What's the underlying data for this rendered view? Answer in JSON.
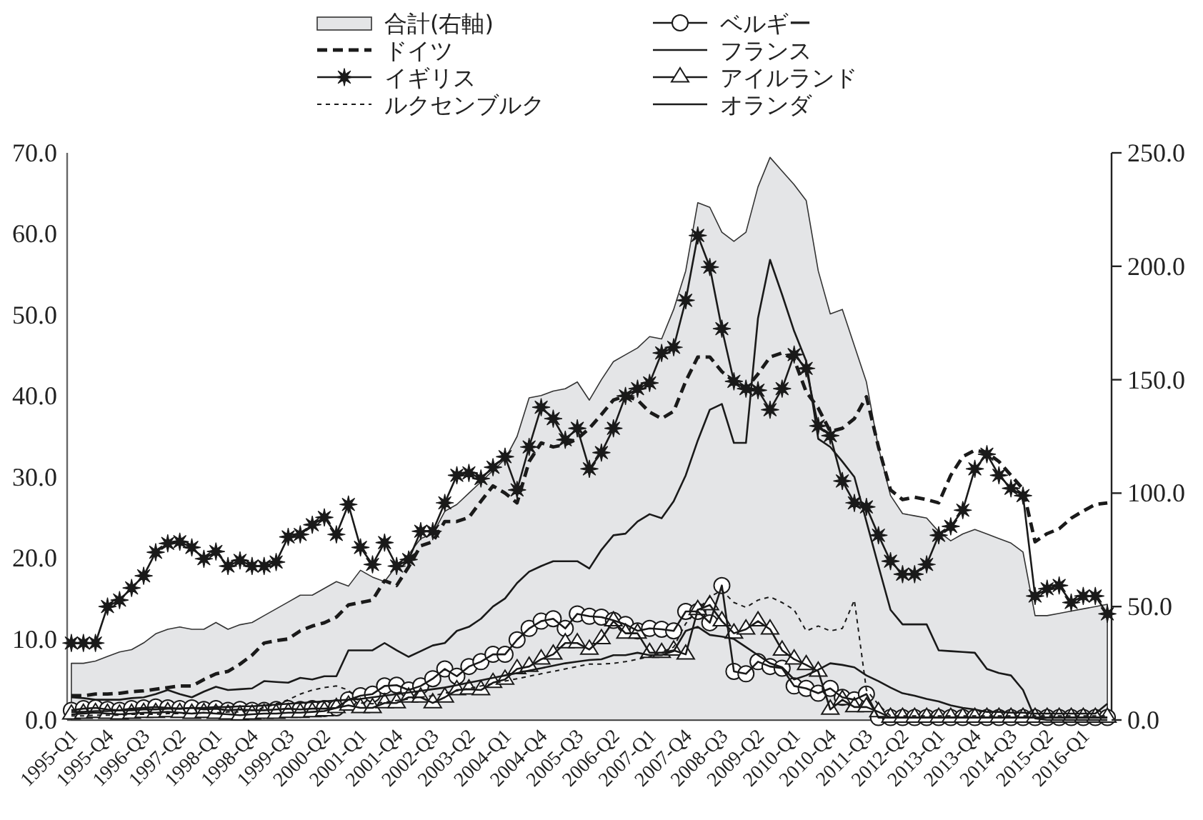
{
  "chart_data": {
    "type": "line",
    "categories": [
      "1995-Q1",
      null,
      null,
      "1995-Q4",
      null,
      null,
      "1996-Q3",
      null,
      null,
      "1997-Q2",
      null,
      null,
      "1998-Q1",
      null,
      null,
      "1998-Q4",
      null,
      null,
      "1999-Q3",
      null,
      null,
      "2000-Q2",
      null,
      null,
      "2001-Q1",
      null,
      null,
      "2001-Q4",
      null,
      null,
      "2002-Q3",
      null,
      null,
      "2003-Q2",
      null,
      null,
      "2004-Q1",
      null,
      null,
      "2004-Q4",
      null,
      null,
      "2005-Q3",
      null,
      null,
      "2006-Q2",
      null,
      null,
      "2007-Q1",
      null,
      null,
      "2007-Q4",
      null,
      null,
      "2008-Q3",
      null,
      null,
      "2009-Q2",
      null,
      null,
      "2010-Q1",
      null,
      null,
      "2010-Q4",
      null,
      null,
      "2011-Q3",
      null,
      null,
      "2012-Q2",
      null,
      null,
      "2013-Q1",
      null,
      null,
      "2013-Q4",
      null,
      null,
      "2014-Q3",
      null,
      null,
      "2015-Q2",
      null,
      null,
      "2016-Q1",
      null,
      null
    ],
    "series": [
      {
        "name": "合計(右軸)",
        "type": "area",
        "axis": "y2",
        "color": "#e4e5e7",
        "values": [
          25,
          25,
          26,
          28,
          30,
          31,
          34,
          38,
          40,
          41,
          40,
          40,
          43,
          40,
          42,
          43,
          46,
          49,
          52,
          55,
          55,
          58,
          61,
          59,
          66,
          63,
          61,
          68,
          73,
          80,
          82,
          92,
          95,
          100,
          105,
          110,
          115,
          125,
          142,
          143,
          145,
          146,
          149,
          141,
          150,
          158,
          161,
          164,
          169,
          168,
          181,
          198,
          228,
          226,
          215,
          211,
          215,
          235,
          248,
          242,
          236,
          229,
          198,
          179,
          181,
          165,
          149,
          120,
          99,
          91,
          90,
          89,
          83,
          79,
          82,
          84,
          82,
          80,
          78,
          74,
          46,
          46,
          47,
          48,
          49,
          50,
          51
        ]
      },
      {
        "name": "ドイツ",
        "color": "#1a1a1a",
        "line_style": "dashed",
        "values": [
          3.0,
          3.0,
          3.2,
          3.2,
          3.3,
          3.5,
          3.6,
          3.8,
          4.0,
          4.2,
          4.2,
          5.0,
          5.7,
          6.0,
          6.9,
          8.0,
          9.5,
          9.8,
          10.0,
          11.0,
          11.6,
          12.0,
          12.7,
          14.2,
          14.5,
          14.8,
          17.2,
          16.6,
          18.9,
          21.5,
          22.0,
          24.5,
          24.5,
          25.0,
          27.0,
          28.9,
          28.0,
          26.8,
          31.9,
          34.2,
          33.7,
          34.0,
          34.7,
          36.0,
          37.7,
          39.5,
          40.0,
          39.5,
          38.0,
          37.2,
          38.1,
          41.8,
          44.8,
          44.8,
          43.0,
          41.8,
          40.9,
          42.7,
          44.8,
          45.3,
          44.5,
          40.5,
          38.5,
          35.6,
          36.0,
          37.2,
          39.9,
          33.7,
          28.4,
          27.2,
          27.5,
          27.2,
          26.8,
          30.2,
          32.5,
          33.3,
          33.0,
          31.9,
          30.2,
          28.5,
          22.0,
          23.0,
          23.6,
          24.9,
          25.8,
          26.6,
          26.8
        ]
      },
      {
        "name": "イギリス",
        "color": "#1a1a1a",
        "line_style": "solid",
        "marker": "star",
        "values": [
          9.5,
          9.5,
          9.5,
          14.0,
          14.8,
          16.3,
          17.8,
          20.7,
          21.8,
          22.0,
          21.3,
          19.9,
          20.8,
          19.0,
          19.7,
          19.0,
          19.0,
          19.5,
          22.6,
          22.9,
          24.1,
          25.0,
          22.9,
          26.6,
          21.3,
          19.2,
          21.9,
          19.0,
          19.8,
          23.3,
          23.3,
          26.8,
          30.2,
          30.5,
          29.8,
          31.2,
          32.5,
          28.4,
          33.7,
          38.6,
          37.2,
          34.6,
          36.0,
          31.0,
          33.0,
          36.0,
          40.0,
          40.9,
          41.6,
          45.3,
          46.0,
          51.8,
          59.8,
          55.9,
          48.3,
          41.8,
          40.9,
          40.7,
          38.3,
          40.9,
          45.1,
          43.4,
          36.3,
          35.1,
          29.5,
          26.8,
          26.3,
          22.8,
          19.6,
          18.0,
          18.0,
          19.2,
          22.8,
          23.9,
          25.9,
          31.0,
          32.8,
          30.2,
          28.6,
          27.7,
          15.3,
          16.2,
          16.6,
          14.5,
          15.3,
          15.3,
          13.1
        ]
      },
      {
        "name": "ルクセンブルク",
        "color": "#1a1a1a",
        "line_style": "dotted",
        "values": [
          0.5,
          0.5,
          0.6,
          0.6,
          0.6,
          0.7,
          0.7,
          0.7,
          0.8,
          0.8,
          0.8,
          0.9,
          0.9,
          1.0,
          1.0,
          1.2,
          1.5,
          2.0,
          2.5,
          3.2,
          3.7,
          4.0,
          4.2,
          3.7,
          2.1,
          2.0,
          2.2,
          2.4,
          2.6,
          2.8,
          3.0,
          3.3,
          3.6,
          3.9,
          4.2,
          4.5,
          4.8,
          5.1,
          5.4,
          5.7,
          6.0,
          6.3,
          6.6,
          6.9,
          6.9,
          7.0,
          7.2,
          7.5,
          7.8,
          8.4,
          9.0,
          11.9,
          13.6,
          15.2,
          16.0,
          14.5,
          13.9,
          14.8,
          15.2,
          14.5,
          13.6,
          11.0,
          11.6,
          11.0,
          11.3,
          14.8,
          3.7,
          1.9,
          0.5,
          0.5,
          0.5,
          0.5,
          0.5,
          0.5,
          0.5,
          0.5,
          0.5,
          0.5,
          0.5,
          0.5,
          0.5,
          0.5,
          0.5,
          0.5,
          0.5,
          0.5,
          0.5
        ]
      },
      {
        "name": "ベルギー",
        "color": "#1a1a1a",
        "line_style": "solid",
        "marker": "circle",
        "values": [
          1.2,
          1.4,
          1.5,
          1.3,
          1.2,
          1.4,
          1.5,
          1.6,
          1.5,
          1.4,
          1.5,
          1.3,
          1.4,
          1.2,
          1.3,
          1.2,
          1.2,
          1.3,
          1.4,
          1.3,
          1.4,
          1.4,
          1.5,
          2.5,
          3.0,
          3.2,
          4.2,
          4.3,
          3.7,
          4.2,
          5.1,
          6.3,
          5.4,
          6.6,
          7.2,
          8.1,
          8.1,
          9.9,
          11.3,
          12.2,
          12.5,
          11.3,
          13.1,
          12.8,
          12.7,
          12.3,
          11.8,
          11.0,
          11.3,
          11.2,
          11.0,
          13.4,
          13.4,
          12.0,
          16.6,
          6.0,
          5.7,
          7.2,
          6.6,
          6.4,
          4.2,
          3.9,
          3.3,
          3.9,
          2.8,
          2.5,
          3.2,
          0.3,
          0.3,
          0.3,
          0.3,
          0.3,
          0.3,
          0.3,
          0.3,
          0.3,
          0.3,
          0.3,
          0.3,
          0.3,
          0.3,
          0.3,
          0.3,
          0.3,
          0.3,
          0.3,
          0.3
        ]
      },
      {
        "name": "フランス",
        "color": "#1a1a1a",
        "line_style": "solid",
        "values": [
          2.8,
          2.7,
          2.5,
          2.5,
          2.5,
          2.7,
          2.8,
          3.2,
          3.7,
          3.2,
          2.8,
          3.5,
          4.1,
          3.7,
          3.8,
          3.9,
          4.8,
          4.7,
          4.6,
          5.2,
          5.0,
          5.4,
          5.4,
          8.6,
          8.6,
          8.6,
          9.5,
          8.6,
          7.8,
          8.5,
          9.2,
          9.5,
          11.0,
          11.5,
          12.5,
          14.0,
          15.0,
          16.9,
          18.3,
          19.0,
          19.6,
          19.6,
          19.6,
          18.7,
          21.0,
          22.8,
          23.0,
          24.5,
          25.4,
          24.9,
          27.0,
          30.2,
          34.5,
          38.3,
          39.0,
          34.2,
          34.2,
          49.6,
          56.8,
          52.5,
          48.0,
          44.3,
          34.7,
          33.7,
          31.9,
          30.0,
          24.5,
          19.0,
          13.6,
          11.8,
          11.8,
          11.8,
          8.6,
          8.5,
          8.4,
          8.3,
          6.3,
          5.8,
          5.5,
          3.7,
          0.2,
          0,
          0,
          0,
          0,
          0,
          0
        ]
      },
      {
        "name": "アイルランド",
        "color": "#1a1a1a",
        "line_style": "solid",
        "marker": "triangle",
        "values": [
          0.7,
          0.8,
          0.9,
          0.8,
          0.7,
          0.8,
          0.9,
          0.9,
          1.0,
          0.9,
          0.8,
          0.9,
          0.8,
          0.7,
          0.6,
          0.7,
          0.8,
          0.8,
          0.9,
          0.9,
          1.0,
          1.1,
          1.5,
          1.8,
          1.5,
          1.5,
          2.1,
          2.1,
          2.8,
          2.8,
          2.1,
          2.8,
          3.7,
          3.8,
          3.7,
          4.6,
          5.0,
          6.3,
          6.6,
          7.5,
          8.1,
          9.5,
          9.5,
          8.7,
          10.0,
          12.2,
          10.7,
          10.7,
          8.3,
          8.3,
          8.6,
          8.1,
          13.6,
          14.2,
          12.2,
          10.7,
          11.2,
          12.2,
          11.2,
          8.6,
          7.5,
          6.8,
          6.0,
          1.3,
          2.5,
          1.6,
          1.6,
          1.0,
          0.3,
          0.3,
          0.3,
          0.3,
          0.3,
          0.3,
          0.3,
          0.3,
          0.3,
          0.3,
          0.3,
          0.3,
          0.3,
          0.3,
          0.3,
          0.3,
          0.3,
          0.3,
          0.3
        ]
      },
      {
        "name": "オランダ",
        "color": "#1a1a1a",
        "line_style": "solid",
        "values": [
          1.0,
          1.0,
          1.1,
          1.1,
          1.2,
          1.2,
          1.3,
          1.3,
          1.4,
          1.4,
          1.5,
          1.5,
          1.6,
          1.6,
          1.7,
          1.7,
          1.8,
          1.9,
          2.0,
          2.1,
          2.2,
          2.3,
          2.4,
          2.5,
          2.6,
          2.8,
          3.0,
          3.2,
          3.4,
          3.6,
          3.8,
          4.0,
          4.3,
          4.6,
          4.9,
          5.2,
          5.5,
          5.8,
          6.1,
          6.4,
          6.7,
          7.0,
          7.2,
          7.4,
          7.5,
          8.0,
          8.0,
          8.3,
          8.0,
          8.0,
          8.5,
          11.0,
          11.5,
          10.5,
          10.3,
          10.0,
          9.0,
          8.0,
          7.0,
          6.5,
          5.0,
          5.5,
          6.2,
          7.0,
          6.8,
          6.5,
          5.5,
          4.8,
          4.0,
          3.3,
          3.0,
          2.6,
          2.3,
          1.8,
          1.5,
          1.3,
          1.0,
          1.0,
          0.9,
          0.9,
          0.8,
          0.8,
          0.8,
          0.8,
          0.8,
          0.8,
          2.0
        ]
      }
    ],
    "ylim": [
      0,
      70
    ],
    "yticks": [
      {
        "value": 0,
        "label": "0.0"
      },
      {
        "value": 10,
        "label": "10.0"
      },
      {
        "value": 20,
        "label": "20.0"
      },
      {
        "value": 30,
        "label": "30.0"
      },
      {
        "value": 40,
        "label": "40.0"
      },
      {
        "value": 50,
        "label": "50.0"
      },
      {
        "value": 60,
        "label": "60.0"
      },
      {
        "value": 70,
        "label": "70.0"
      }
    ],
    "y2lim": [
      0,
      250
    ],
    "y2ticks": [
      {
        "value": 0,
        "label": "0.0"
      },
      {
        "value": 50,
        "label": "50.0"
      },
      {
        "value": 100,
        "label": "100.0"
      },
      {
        "value": 150,
        "label": "150.0"
      },
      {
        "value": 200,
        "label": "200.0"
      },
      {
        "value": 250,
        "label": "250.0"
      }
    ],
    "legend": "top"
  }
}
